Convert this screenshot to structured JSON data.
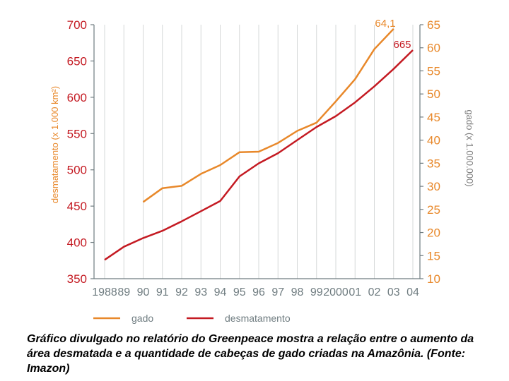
{
  "chart_data": {
    "type": "line",
    "x": [
      "1988",
      "89",
      "90",
      "91",
      "92",
      "93",
      "94",
      "95",
      "96",
      "97",
      "98",
      "99",
      "2000",
      "01",
      "02",
      "03",
      "04"
    ],
    "y_left": {
      "label": "desmatamento (x 1.000 km²)",
      "ticks": [
        700,
        650,
        600,
        550,
        500,
        450,
        400,
        350
      ],
      "range": [
        350,
        700
      ]
    },
    "y_right": {
      "label": "gado (x 1.000.000)",
      "ticks": [
        65,
        60,
        55,
        50,
        45,
        40,
        35,
        30,
        25,
        20,
        15,
        10
      ],
      "range": [
        10,
        65
      ]
    },
    "series": [
      {
        "name": "gado",
        "axis": "right",
        "color": "#e8882a",
        "values": [
          null,
          null,
          26.6,
          29.6,
          30.1,
          32.7,
          34.6,
          37.4,
          37.5,
          39.4,
          42.0,
          43.8,
          48.4,
          53.2,
          59.7,
          64.1,
          null
        ]
      },
      {
        "name": "desmatamento",
        "axis": "left",
        "color": "#c41a22",
        "values": [
          376,
          394,
          406,
          416,
          429,
          443,
          457,
          491,
          509,
          523,
          541,
          559,
          574,
          593,
          615,
          639,
          665
        ]
      }
    ],
    "annotations": {
      "gado_peak": "64,1",
      "desmatamento_peak": "665"
    },
    "legend": {
      "position": "bottom-left",
      "items": [
        "gado",
        "desmatamento"
      ]
    },
    "grid": "vertical"
  },
  "caption": "Gráfico divulgado no relatório do Greenpeace mostra a relação entre o aumento da área desmatada e a quantidade de cabeças de gado criadas na Amazônia. (Fonte: Imazon)"
}
